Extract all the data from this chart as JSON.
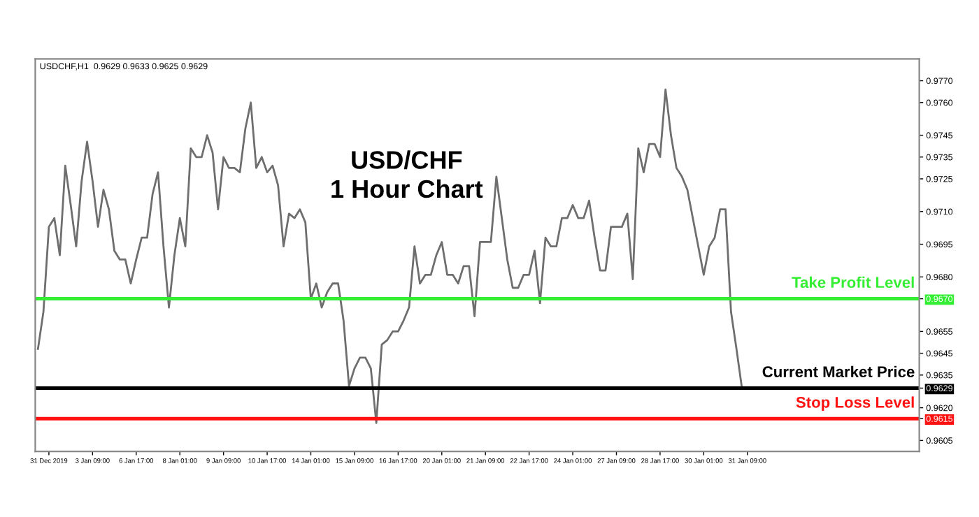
{
  "chart_data": {
    "type": "line",
    "title": "USD/CHF\n1 Hour Chart",
    "annotations": [
      "USDCHF,H1  0.9629 0.9633 0.9625 0.9629"
    ],
    "categories": [
      null,
      null,
      "31 Dec 2019",
      null,
      null,
      null,
      null,
      null,
      null,
      null,
      "3 Jan 09:00",
      null,
      null,
      null,
      null,
      null,
      null,
      null,
      "6 Jan 17:00",
      null,
      null,
      null,
      null,
      null,
      null,
      null,
      "8 Jan 01:00",
      null,
      null,
      null,
      null,
      null,
      null,
      null,
      "9 Jan 09:00",
      null,
      null,
      null,
      null,
      null,
      null,
      null,
      "10 Jan 17:00",
      null,
      null,
      null,
      null,
      null,
      null,
      null,
      "14 Jan 01:00",
      null,
      null,
      null,
      null,
      null,
      null,
      null,
      "15 Jan 09:00",
      null,
      null,
      null,
      null,
      null,
      null,
      null,
      "16 Jan 17:00",
      null,
      null,
      null,
      null,
      null,
      null,
      null,
      "20 Jan 01:00",
      null,
      null,
      null,
      null,
      null,
      null,
      null,
      "21 Jan 09:00",
      null,
      null,
      null,
      null,
      null,
      null,
      null,
      "22 Jan 17:00",
      null,
      null,
      null,
      null,
      null,
      null,
      null,
      "24 Jan 01:00",
      null,
      null,
      null,
      null,
      null,
      null,
      null,
      "27 Jan 09:00",
      null,
      null,
      null,
      null,
      null,
      null,
      null,
      "28 Jan 17:00",
      null,
      null,
      null,
      null,
      null,
      null,
      null,
      "30 Jan 01:00",
      null,
      null,
      null,
      null,
      null,
      null,
      null,
      "31 Jan 09:00",
      null,
      null,
      null,
      null,
      null,
      null,
      null,
      null,
      null,
      null,
      null,
      null,
      null,
      null,
      null,
      null,
      null,
      null,
      null,
      null,
      null,
      null,
      null,
      null,
      null,
      null,
      null,
      null,
      null,
      null,
      null
    ],
    "series": [
      {
        "color": "#6e6e6e",
        "values": [
          0.9647,
          0.9664,
          0.9703,
          0.9707,
          0.969,
          0.9731,
          0.9713,
          0.9694,
          0.9724,
          0.9742,
          0.9724,
          0.9703,
          0.972,
          0.9711,
          0.9692,
          0.9688,
          0.9688,
          0.9677,
          0.9688,
          0.9698,
          0.9698,
          0.9718,
          0.9728,
          0.9694,
          0.9666,
          0.969,
          0.9707,
          0.9694,
          0.9739,
          0.9735,
          0.9735,
          0.9745,
          0.9737,
          0.9711,
          0.9735,
          0.973,
          0.973,
          0.9728,
          0.9748,
          0.976,
          0.973,
          0.9735,
          0.9728,
          0.9731,
          0.9722,
          0.9694,
          0.9709,
          0.9707,
          0.9711,
          0.9705,
          0.967,
          0.9677,
          0.9666,
          0.9673,
          0.9677,
          0.9677,
          0.966,
          0.963,
          0.9638,
          0.9643,
          0.9643,
          0.9638,
          0.9613,
          0.9649,
          0.9651,
          0.9655,
          0.9655,
          0.966,
          0.9666,
          0.9694,
          0.9677,
          0.9681,
          0.9681,
          0.969,
          0.9696,
          0.9681,
          0.9681,
          0.9677,
          0.9685,
          0.9685,
          0.9662,
          0.9696,
          0.9696,
          0.9696,
          0.9726,
          0.9707,
          0.9688,
          0.9675,
          0.9675,
          0.9681,
          0.9681,
          0.9692,
          0.9668,
          0.9698,
          0.9694,
          0.9694,
          0.9707,
          0.9707,
          0.9713,
          0.9707,
          0.9707,
          0.9715,
          0.9698,
          0.9683,
          0.9683,
          0.9703,
          0.9703,
          0.9703,
          0.9709,
          0.9679,
          0.9739,
          0.9728,
          0.9741,
          0.9741,
          0.9735,
          0.9766,
          0.9745,
          0.973,
          0.9726,
          0.972,
          0.9707,
          0.9694,
          0.9681,
          0.9694,
          0.9698,
          0.9711,
          0.9711,
          0.9664,
          0.9647,
          0.9629,
          null,
          null,
          null,
          null,
          null,
          null,
          null,
          null,
          null,
          null,
          null,
          null,
          null,
          null,
          null,
          null,
          null,
          null,
          null,
          null,
          null,
          null,
          null,
          null,
          null,
          null,
          null,
          null,
          null,
          null,
          null,
          null
        ]
      }
    ],
    "ylim": [
      0.96,
      0.978
    ],
    "yticks": [
      {
        "value": 0.977,
        "label": "0.9770"
      },
      {
        "value": 0.976,
        "label": "0.9760"
      },
      {
        "value": 0.9745,
        "label": "0.9745"
      },
      {
        "value": 0.9735,
        "label": "0.9735"
      },
      {
        "value": 0.9725,
        "label": "0.9725"
      },
      {
        "value": 0.971,
        "label": "0.9710"
      },
      {
        "value": 0.9695,
        "label": "0.9695"
      },
      {
        "value": 0.968,
        "label": "0.9680"
      },
      {
        "value": 0.967,
        "label": "0.9670"
      },
      {
        "value": 0.9655,
        "label": "0.9655"
      },
      {
        "value": 0.9645,
        "label": "0.9645"
      },
      {
        "value": 0.9635,
        "label": "0.9635"
      },
      {
        "value": 0.9629,
        "label": "0.9629"
      },
      {
        "value": 0.962,
        "label": "0.9620"
      },
      {
        "value": 0.9615,
        "label": "0.9615"
      },
      {
        "value": 0.9605,
        "label": "0.9605"
      }
    ],
    "ref_lines": [
      {
        "axis": "y",
        "value": 0.967,
        "label": "Take Profit Level",
        "color": "#33ee33"
      },
      {
        "axis": "y",
        "value": 0.9629,
        "label": "Current Market Price",
        "color": "#000000"
      },
      {
        "axis": "y",
        "value": 0.9615,
        "label": "Stop Loss Level",
        "color": "#ff1111"
      }
    ],
    "grid": false,
    "legend": false
  }
}
